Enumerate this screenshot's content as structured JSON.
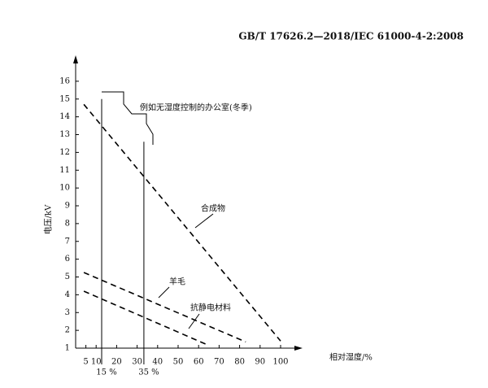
{
  "header": "GB/T 17626.2—2018/IEC 61000-4-2:2008",
  "chart_data": {
    "type": "line",
    "xlabel": "相对湿度/%",
    "ylabel": "电压/kV",
    "xlim": [
      0,
      105
    ],
    "ylim": [
      1,
      17
    ],
    "xticks": [
      5,
      10,
      20,
      30,
      40,
      50,
      60,
      70,
      80,
      90,
      100
    ],
    "yticks": [
      1,
      2,
      3,
      4,
      5,
      6,
      7,
      8,
      9,
      10,
      11,
      12,
      13,
      14,
      15,
      16
    ],
    "color": "#000000",
    "series": [
      {
        "name": "合成物",
        "x": [
          4,
          100
        ],
        "values": [
          14.7,
          1.4
        ]
      },
      {
        "name": "羊毛",
        "x": [
          4,
          83
        ],
        "values": [
          5.25,
          1.35
        ]
      },
      {
        "name": "抗静电材料",
        "x": [
          4,
          65
        ],
        "values": [
          4.2,
          1.15
        ]
      }
    ],
    "reference_lines": [
      {
        "label": "15 %",
        "x": 12.7,
        "top": 15
      },
      {
        "label": "35 %",
        "x": 33.3,
        "top": 12.6
      }
    ],
    "annotation": "例如无湿度控制的办公室(冬季)"
  }
}
